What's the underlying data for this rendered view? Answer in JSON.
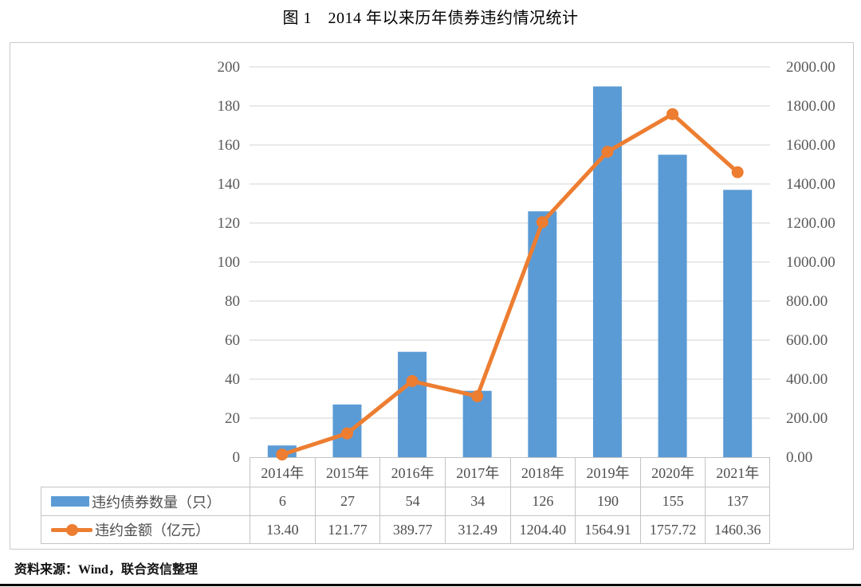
{
  "title": "图 1　2014 年以来历年债券违约情况统计",
  "source_note": "资料来源：Wind，联合资信整理",
  "colors": {
    "bar_blue": "#5B9BD5",
    "line_orange": "#ED7D31",
    "gridline": "#e2e2e2",
    "axis_text": "#595959",
    "table_border": "#c4c4c4"
  },
  "chart_data": {
    "type": "bar+line",
    "title": "图 1　2014 年以来历年债券违约情况统计",
    "categories": [
      "2014年",
      "2015年",
      "2016年",
      "2017年",
      "2018年",
      "2019年",
      "2020年",
      "2021年"
    ],
    "series": [
      {
        "name": "违约债券数量（只）",
        "type": "bar",
        "axis": "left",
        "values": [
          6,
          27,
          54,
          34,
          126,
          190,
          155,
          137
        ]
      },
      {
        "name": "违约金额（亿元）",
        "type": "line",
        "axis": "right",
        "values": [
          13.4,
          121.77,
          389.77,
          312.49,
          1204.4,
          1564.91,
          1757.72,
          1460.36
        ]
      }
    ],
    "left_axis": {
      "min": 0,
      "max": 200,
      "step": 20,
      "ticks": [
        "0",
        "20",
        "40",
        "60",
        "80",
        "100",
        "120",
        "140",
        "160",
        "180",
        "200"
      ]
    },
    "right_axis": {
      "min": 0,
      "max": 2000,
      "step": 200,
      "ticks": [
        "0.00",
        "200.00",
        "400.00",
        "600.00",
        "800.00",
        "1000.00",
        "1200.00",
        "1400.00",
        "1600.00",
        "1800.00",
        "2000.00"
      ]
    },
    "grid": true,
    "legend_position": "table-left"
  },
  "table": {
    "rows": [
      {
        "legend": "违约债券数量（只）",
        "swatch": "bar",
        "values": [
          "6",
          "27",
          "54",
          "34",
          "126",
          "190",
          "155",
          "137"
        ]
      },
      {
        "legend": "违约金额（亿元）",
        "swatch": "line",
        "values": [
          "13.40",
          "121.77",
          "389.77",
          "312.49",
          "1204.40",
          "1564.91",
          "1757.72",
          "1460.36"
        ]
      }
    ]
  }
}
